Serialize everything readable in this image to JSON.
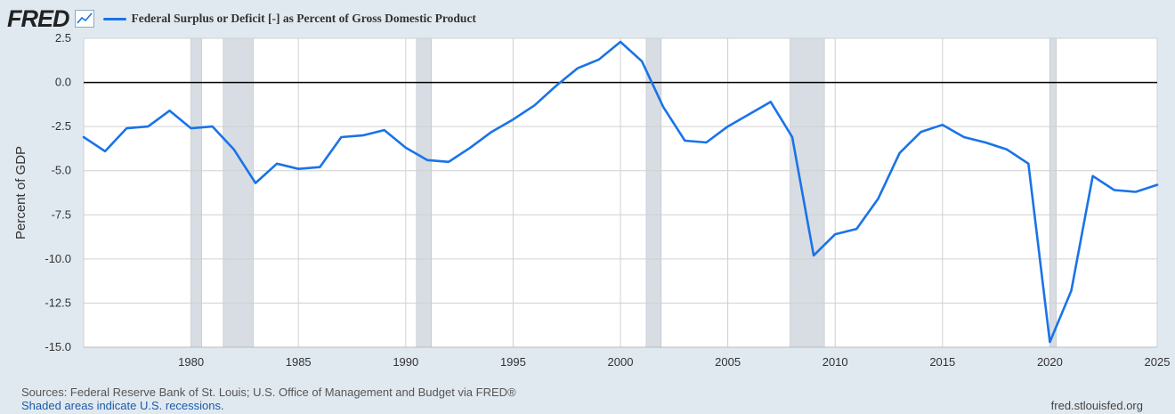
{
  "header": {
    "logo_text": "FRED",
    "logo_icon": "line-chart-icon",
    "legend_label": "Federal Surplus or Deficit [-] as Percent of Gross Domestic Product",
    "legend_color": "#1a73e8"
  },
  "footer": {
    "sources": "Sources: Federal Reserve Bank of St. Louis; U.S. Office of Management and Budget via FRED®",
    "recession_note": "Shaded areas indicate U.S. recessions.",
    "site": "fred.stlouisfed.org"
  },
  "chart_data": {
    "type": "line",
    "title": "",
    "xlabel": "",
    "ylabel": "Percent of GDP",
    "xlim": [
      1975,
      2025
    ],
    "ylim": [
      -15,
      2.5
    ],
    "yticks": [
      2.5,
      0,
      -2.5,
      -5,
      -7.5,
      -10,
      -12.5,
      -15
    ],
    "ytick_labels": [
      "2.5",
      "0.0",
      "-2.5",
      "-5.0",
      "-7.5",
      "-10.0",
      "-12.5",
      "-15.0"
    ],
    "xticks": [
      1980,
      1985,
      1990,
      1995,
      2000,
      2005,
      2010,
      2015,
      2020,
      2025
    ],
    "xtick_labels": [
      "1980",
      "1985",
      "1990",
      "1995",
      "2000",
      "2005",
      "2010",
      "2015",
      "2020",
      "2025"
    ],
    "grid": true,
    "reference_line": 0,
    "series_color": "#1a73e8",
    "recession_color": "#d7dde3",
    "recessions": [
      [
        1980.0,
        1980.5
      ],
      [
        1981.5,
        1982.9
      ],
      [
        1990.5,
        1991.2
      ],
      [
        2001.2,
        2001.9
      ],
      [
        2007.9,
        2009.5
      ],
      [
        2020.0,
        2020.3
      ]
    ],
    "series": [
      {
        "name": "Federal Surplus or Deficit [-] as Percent of Gross Domestic Product",
        "x": [
          1975,
          1976,
          1977,
          1978,
          1979,
          1980,
          1981,
          1982,
          1983,
          1984,
          1985,
          1986,
          1987,
          1988,
          1989,
          1990,
          1991,
          1992,
          1993,
          1994,
          1995,
          1996,
          1997,
          1998,
          1999,
          2000,
          2001,
          2002,
          2003,
          2004,
          2005,
          2006,
          2007,
          2008,
          2009,
          2010,
          2011,
          2012,
          2013,
          2014,
          2015,
          2016,
          2017,
          2018,
          2019,
          2020,
          2021,
          2022,
          2023,
          2024,
          2025
        ],
        "values": [
          -3.1,
          -3.9,
          -2.6,
          -2.5,
          -1.6,
          -2.6,
          -2.5,
          -3.8,
          -5.7,
          -4.6,
          -4.9,
          -4.8,
          -3.1,
          -3.0,
          -2.7,
          -3.7,
          -4.4,
          -4.5,
          -3.7,
          -2.8,
          -2.1,
          -1.3,
          -0.2,
          0.8,
          1.3,
          2.3,
          1.2,
          -1.4,
          -3.3,
          -3.4,
          -2.5,
          -1.8,
          -1.1,
          -3.1,
          -9.8,
          -8.6,
          -8.3,
          -6.6,
          -4.0,
          -2.8,
          -2.4,
          -3.1,
          -3.4,
          -3.8,
          -4.6,
          -14.7,
          -11.8,
          -5.3,
          -6.1,
          -6.2,
          -5.8
        ]
      }
    ]
  }
}
